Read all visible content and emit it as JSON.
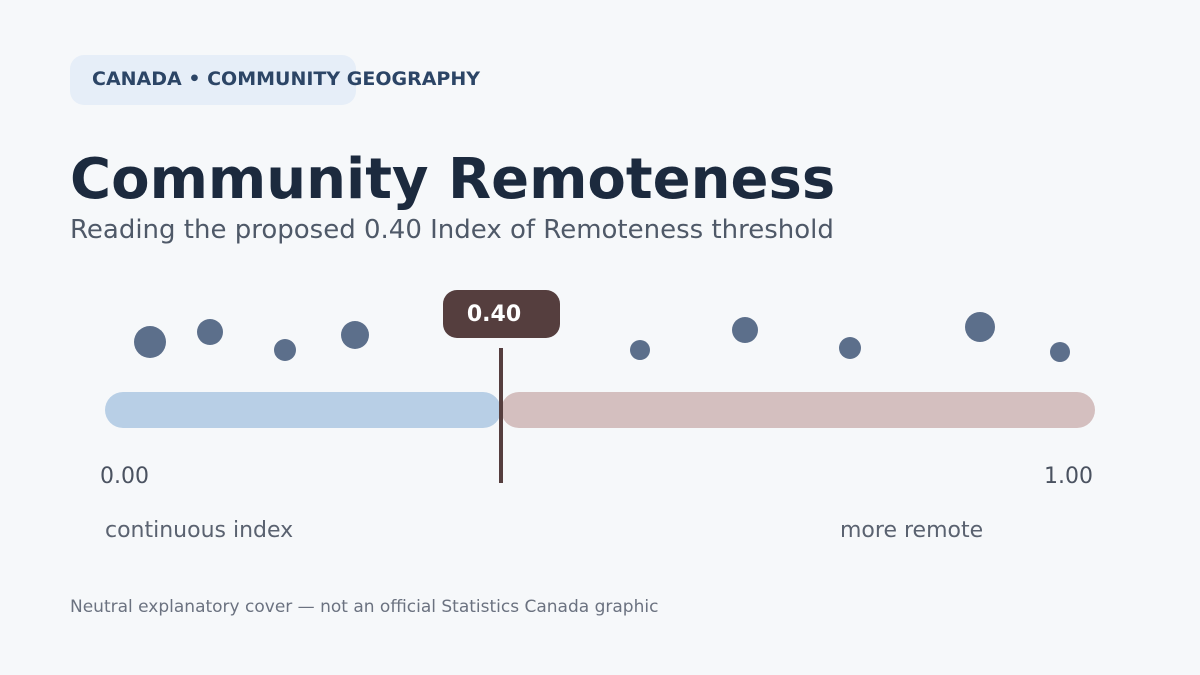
{
  "badge": "CANADA • COMMUNITY GEOGRAPHY",
  "title": "Community Remoteness",
  "subtitle": "Reading the proposed 0.40 Index of Remoteness threshold",
  "scale": {
    "min": {
      "value": 0,
      "label": "0.00"
    },
    "max": {
      "value": 1,
      "label": "1.00"
    },
    "threshold": {
      "value": 0.4,
      "label": "0.40"
    }
  },
  "left_caption": "continuous index",
  "right_caption": "more remote",
  "footer": "Neutral explanatory cover — not an official Statistics Canada graphic"
}
